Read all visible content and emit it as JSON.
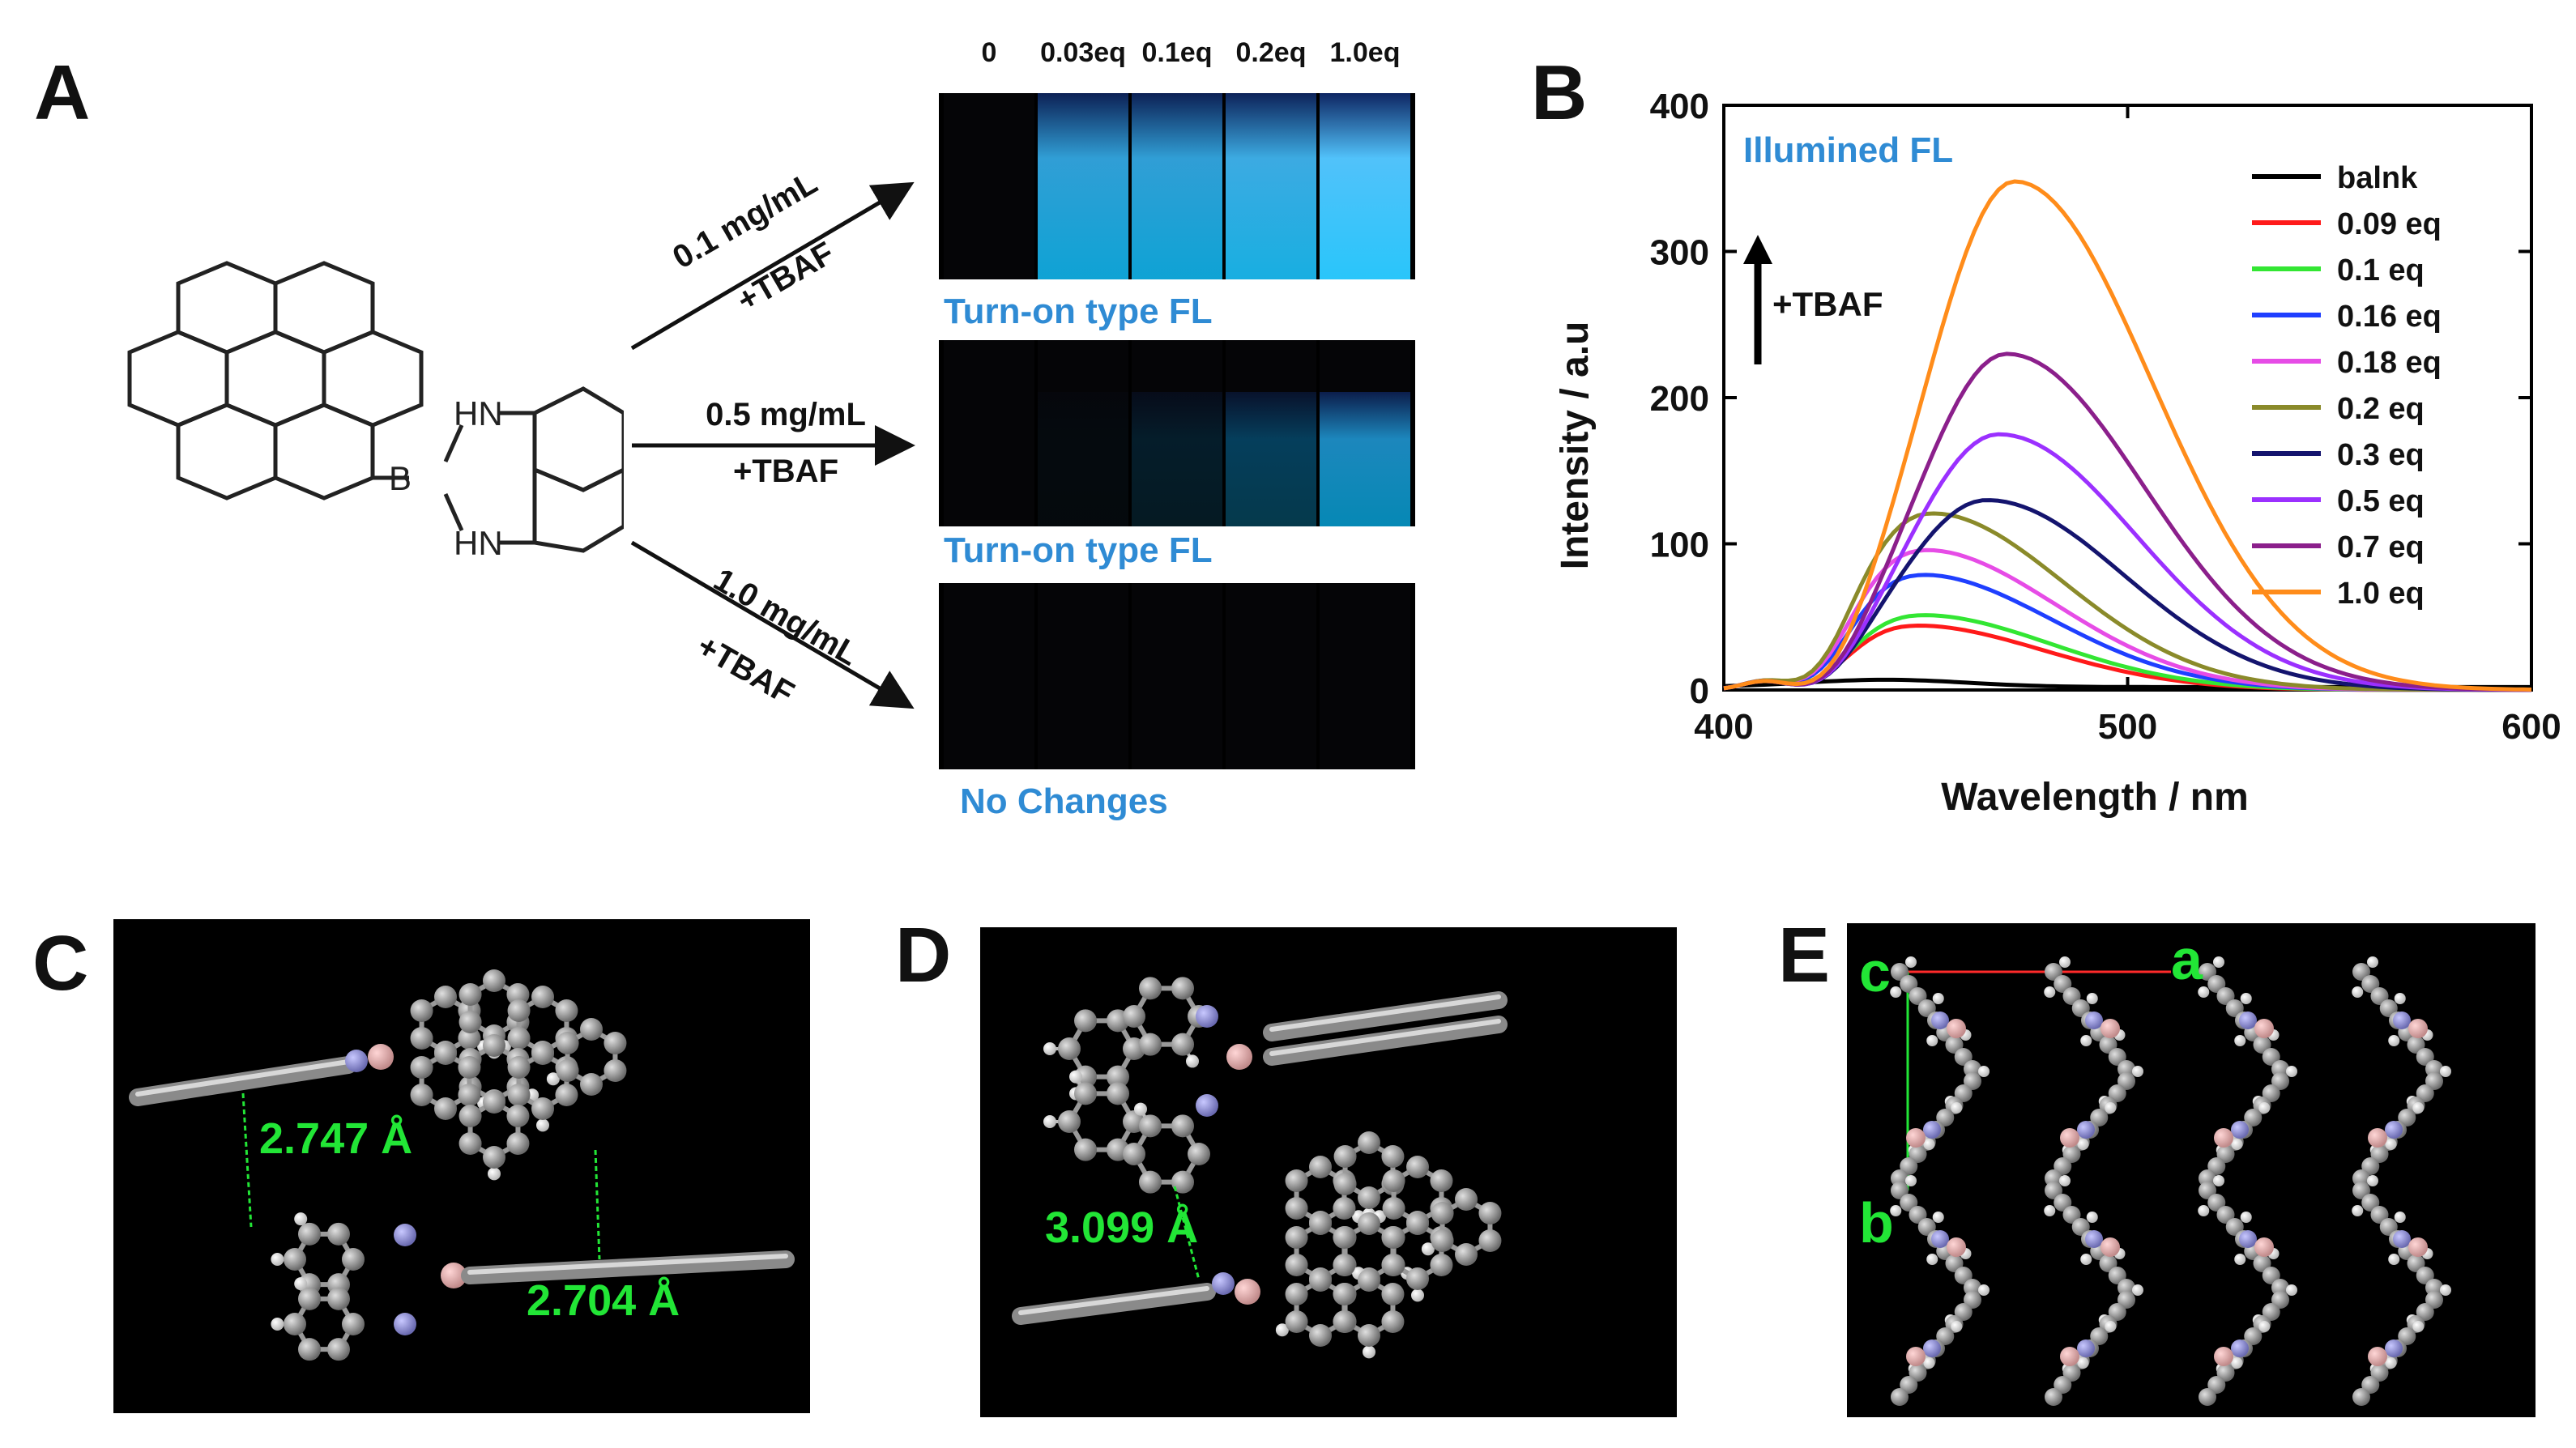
{
  "panels": {
    "A": {
      "letter": "A",
      "structure_labels": {
        "hn_top": "HN",
        "b": "B",
        "hn_bottom": "HN"
      },
      "conditions": [
        {
          "conc": "0.1 mg/mL",
          "reagent": "+TBAF"
        },
        {
          "conc": "0.5 mg/mL",
          "reagent": "+TBAF"
        },
        {
          "conc": "1.0 mg/mL",
          "reagent": "+TBAF"
        }
      ],
      "eq_labels": [
        "0",
        "0.03eq",
        "0.1eq",
        "0.2eq",
        "1.0eq"
      ],
      "row_captions": [
        "Turn-on type FL",
        "Turn-on type FL",
        "No Changes"
      ],
      "glow_levels": [
        [
          0,
          0.85,
          0.85,
          0.9,
          1.0
        ],
        [
          0,
          0.05,
          0.2,
          0.4,
          0.75
        ],
        [
          0,
          0,
          0,
          0,
          0
        ]
      ]
    },
    "B": {
      "letter": "B"
    },
    "C": {
      "letter": "C",
      "distances": [
        "2.747 Å",
        "2.704 Å"
      ]
    },
    "D": {
      "letter": "D",
      "distances": [
        "3.099 Å"
      ]
    },
    "E": {
      "letter": "E",
      "axes": {
        "c": "c",
        "a": "a",
        "b": "b"
      }
    }
  },
  "chart_data": {
    "type": "line",
    "title": "",
    "annotation": "Illumined FL",
    "arrow_label": "+TBAF",
    "xlabel": "Wavelength / nm",
    "ylabel": "Intensity / a.u",
    "xlim": [
      400,
      600
    ],
    "ylim": [
      0,
      400
    ],
    "xticks": [
      "400",
      "500",
      "600"
    ],
    "yticks": [
      "0",
      "100",
      "200",
      "300",
      "400"
    ],
    "legend_position": "top-right",
    "series": [
      {
        "name": "balnk",
        "color": "#000000",
        "peak": 5,
        "peak_x": 440
      },
      {
        "name": "0.09 eq",
        "color": "#ff1a1a",
        "peak": 45,
        "peak_x": 445
      },
      {
        "name": "0.1 eq",
        "color": "#33e633",
        "peak": 52,
        "peak_x": 447
      },
      {
        "name": "0.16 eq",
        "color": "#1f3fff",
        "peak": 80,
        "peak_x": 447
      },
      {
        "name": "0.18 eq",
        "color": "#e64ce6",
        "peak": 97,
        "peak_x": 448
      },
      {
        "name": "0.2 eq",
        "color": "#8a8a2a",
        "peak": 122,
        "peak_x": 450
      },
      {
        "name": "0.3 eq",
        "color": "#14146e",
        "peak": 130,
        "peak_x": 465
      },
      {
        "name": "0.5 eq",
        "color": "#9b30ff",
        "peak": 175,
        "peak_x": 468
      },
      {
        "name": "0.7 eq",
        "color": "#8b1f8b",
        "peak": 230,
        "peak_x": 470
      },
      {
        "name": "1.0 eq",
        "color": "#ff8c1a",
        "peak": 348,
        "peak_x": 472
      }
    ]
  },
  "colors": {
    "caption_blue": "#2f8bd4",
    "distance_green": "#22e636"
  }
}
